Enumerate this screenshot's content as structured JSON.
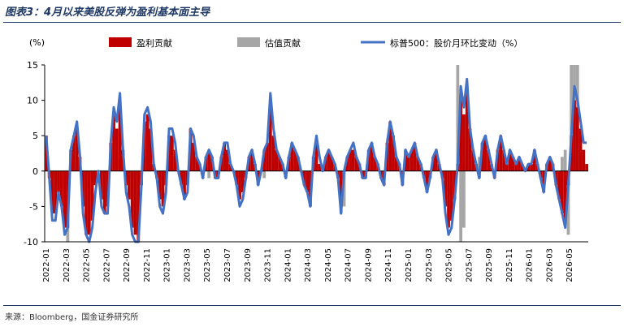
{
  "title": "图表3：4月以来美股反弹为盈利基本面主导",
  "source": "来源：Bloomberg，国金证券研究所",
  "chart_data": {
    "type": "bar",
    "yunit": "(%)",
    "ylim": [
      -10,
      15
    ],
    "yticks": [
      15,
      10,
      5,
      0,
      -5,
      -10
    ],
    "x_tick_labels": [
      "2022-01",
      "2022-03",
      "2022-05",
      "2022-07",
      "2022-09",
      "2022-11",
      "2023-01",
      "2023-03",
      "2023-05",
      "2023-07",
      "2023-09",
      "2023-11",
      "2024-01",
      "2024-03",
      "2024-05",
      "2024-07",
      "2024-09",
      "2024-11",
      "2025-01",
      "2025-03",
      "2025-05",
      "2025-07",
      "2025-09",
      "2025-11",
      "2026-01",
      "2026-03",
      "2026-05"
    ],
    "legend": [
      "盈利贡献",
      "估值贡献",
      "标普500：股价月环比变动（%）"
    ],
    "colors": {
      "earnings": "#c00000",
      "valuation": "#a6a6a6",
      "line": "#4472c4"
    },
    "earnings": [
      5,
      -1,
      -6,
      -6,
      -3,
      -5,
      -8,
      -8,
      3,
      5,
      6,
      2,
      -5,
      -9,
      -9,
      -7,
      -2,
      0,
      -4,
      -6,
      -5,
      4,
      8,
      6,
      9,
      3,
      -2,
      -4,
      -8,
      -9,
      -10,
      -2,
      7,
      8,
      6,
      1,
      -1,
      -4,
      -5,
      -2,
      5,
      5,
      3,
      0,
      -2,
      -4,
      -2,
      6,
      4,
      2,
      1,
      -1,
      2,
      3,
      2,
      -1,
      -1,
      2,
      4,
      3,
      1,
      0,
      -2,
      -4,
      -3,
      -1,
      2,
      3,
      1,
      -2,
      0,
      3,
      4,
      9,
      5,
      3,
      2,
      1,
      -1,
      2,
      4,
      3,
      2,
      0,
      -2,
      -3,
      -5,
      2,
      4,
      1,
      0,
      2,
      3,
      2,
      1,
      -1,
      -5,
      0,
      2,
      3,
      3,
      2,
      1,
      -1,
      -1,
      3,
      4,
      2,
      1,
      -1,
      -2,
      4,
      7,
      5,
      2,
      1,
      -2,
      3,
      2,
      3,
      4,
      2,
      1,
      -1,
      -3,
      -1,
      2,
      3,
      1,
      -1,
      -5,
      -8,
      -7,
      -4,
      1,
      10,
      8,
      12,
      6,
      3,
      1,
      -1,
      4,
      5,
      3,
      1,
      -1,
      3,
      5,
      3,
      1,
      3,
      2,
      1,
      2,
      1,
      0,
      1,
      1,
      3,
      1,
      -1,
      -3,
      1,
      2,
      1,
      -2,
      -4,
      -6,
      -7,
      -2,
      5,
      10,
      9,
      6,
      3,
      1
    ],
    "valuation": [
      0,
      0,
      -1,
      0,
      -2,
      0,
      -2,
      -10,
      0,
      0,
      1,
      0,
      -1,
      -1,
      -1,
      -1,
      0,
      0,
      -1,
      0,
      -1,
      0,
      0,
      1,
      2,
      0,
      0,
      -1,
      0,
      -1,
      -1,
      0,
      1,
      2,
      1,
      0,
      0,
      0,
      -1,
      0,
      0,
      2,
      1,
      0,
      0,
      -1,
      -1,
      0,
      0,
      0,
      0,
      0,
      0,
      -1,
      0,
      0,
      0,
      0,
      1,
      1,
      0,
      0,
      0,
      -1,
      -1,
      0,
      0,
      0,
      0,
      0,
      0,
      -1,
      0,
      1,
      0,
      0,
      0,
      0,
      0,
      0,
      1,
      0,
      0,
      0,
      0,
      -1,
      -1,
      0,
      0,
      0,
      0,
      0,
      0,
      0,
      0,
      0,
      -6,
      -5,
      0,
      0,
      0,
      0,
      0,
      0,
      0,
      0,
      0,
      0,
      0,
      0,
      0,
      0,
      0,
      1,
      0,
      0,
      0,
      0,
      0,
      0,
      0,
      0,
      0,
      0,
      0,
      0,
      0,
      0,
      0,
      0,
      0,
      0,
      0,
      0,
      15,
      -10,
      -8,
      2,
      0,
      0,
      1,
      2,
      0,
      0,
      0,
      0,
      0,
      0,
      0,
      0,
      0,
      0,
      0,
      0,
      0,
      0,
      0,
      0,
      0,
      0,
      0,
      0,
      0,
      0,
      0,
      0,
      0,
      0,
      2,
      3,
      -9,
      15,
      15,
      15,
      0,
      0,
      0,
      0,
      0
    ],
    "price_change": [
      5,
      -1,
      -7,
      -7,
      -3,
      -5,
      -9,
      -8,
      3,
      5,
      7,
      2,
      -6,
      -9,
      -10,
      -8,
      -3,
      0,
      -5,
      -6,
      -6,
      4,
      9,
      7,
      11,
      3,
      -3,
      -5,
      -9,
      -10,
      -10,
      -2,
      8,
      9,
      7,
      1,
      -1,
      -5,
      -6,
      -3,
      6,
      6,
      4,
      0,
      -2,
      -4,
      -3,
      6,
      5,
      2,
      1,
      -1,
      2,
      3,
      2,
      -1,
      -1,
      2,
      4,
      4,
      1,
      0,
      -2,
      -5,
      -4,
      -1,
      2,
      3,
      1,
      -2,
      0,
      3,
      4,
      11,
      6,
      3,
      2,
      1,
      -1,
      2,
      4,
      3,
      2,
      0,
      -2,
      -3,
      -5,
      2,
      5,
      2,
      0,
      2,
      3,
      2,
      1,
      -1,
      -6,
      0,
      2,
      3,
      4,
      2,
      1,
      -1,
      -1,
      3,
      4,
      2,
      1,
      -1,
      -2,
      4,
      7,
      5,
      2,
      1,
      -2,
      3,
      2,
      3,
      4,
      2,
      1,
      -1,
      -3,
      -1,
      2,
      3,
      1,
      -1,
      -6,
      -9,
      -8,
      -4,
      1,
      12,
      9,
      13,
      6,
      3,
      1,
      -1,
      4,
      5,
      3,
      1,
      -1,
      3,
      5,
      3,
      1,
      3,
      2,
      1,
      2,
      1,
      0,
      1,
      1,
      3,
      1,
      -1,
      -3,
      1,
      2,
      1,
      -2,
      -4,
      -6,
      -8,
      -2,
      5,
      12,
      10,
      7,
      4,
      4
    ]
  }
}
